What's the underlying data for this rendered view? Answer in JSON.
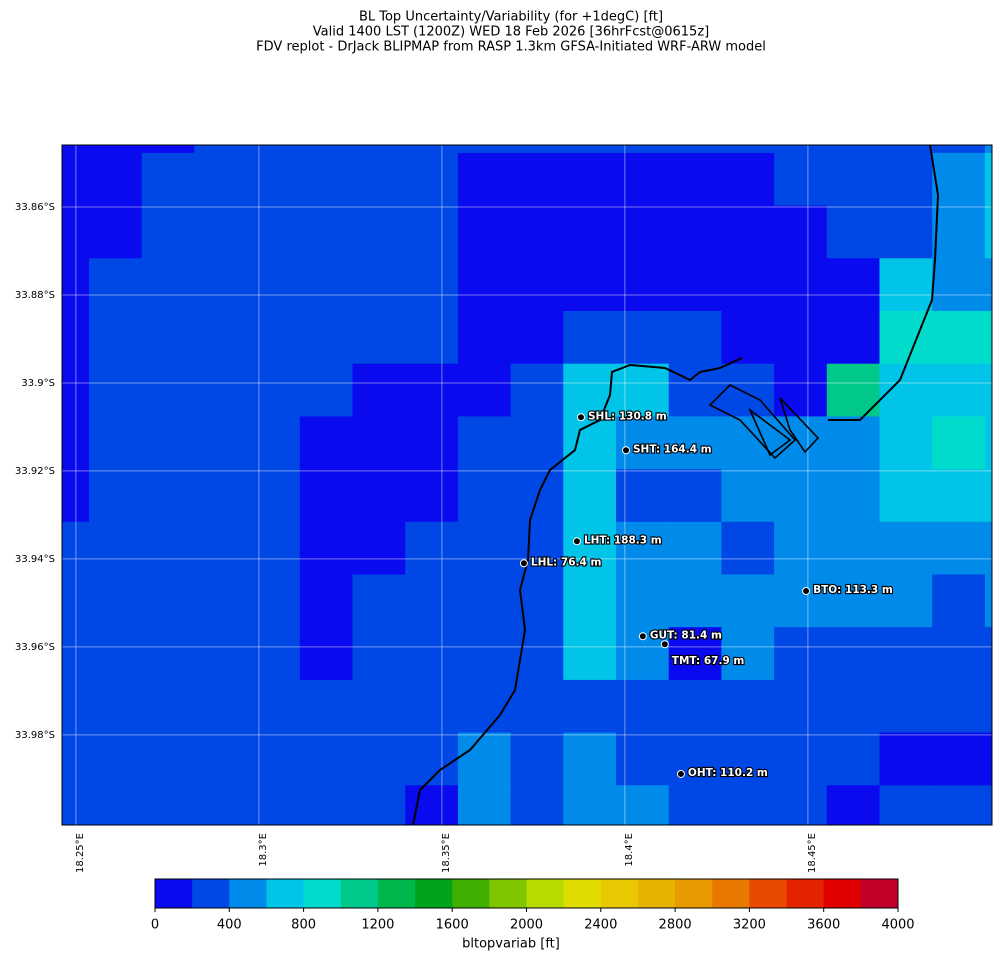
{
  "chart_data": {
    "type": "raster-map",
    "title": [
      "BL Top Uncertainty/Variability (for +1degC) [ft]",
      "Valid 1400 LST (1200Z) WED 18 Feb 2026 [36hrFcst@0615z]",
      "FDV replot - DrJack BLIPMAP from RASP 1.3km GFSA-Initiated WRF-ARW model"
    ],
    "xlim": [
      18.2462,
      18.5003
    ],
    "ylim": [
      -34.0005,
      -33.8459
    ],
    "xticks": [
      {
        "value": 18.25,
        "label": "18.25°E"
      },
      {
        "value": 18.3,
        "label": "18.3°E"
      },
      {
        "value": 18.35,
        "label": "18.35°E"
      },
      {
        "value": 18.4,
        "label": "18.4°E"
      },
      {
        "value": 18.45,
        "label": "18.45°E"
      }
    ],
    "yticks": [
      {
        "value": -33.86,
        "label": "33.86°S"
      },
      {
        "value": -33.88,
        "label": "33.88°S"
      },
      {
        "value": -33.9,
        "label": "33.9°S"
      },
      {
        "value": -33.92,
        "label": "33.92°S"
      },
      {
        "value": -33.94,
        "label": "33.94°S"
      },
      {
        "value": -33.96,
        "label": "33.96°S"
      },
      {
        "value": -33.98,
        "label": "33.98°S"
      }
    ],
    "grid": true,
    "raster": [
      [
        100,
        100,
        100,
        300,
        300,
        300,
        300,
        300,
        300,
        300,
        300,
        300,
        300,
        300,
        300,
        300,
        300,
        300,
        500
      ],
      [
        100,
        100,
        300,
        300,
        300,
        300,
        300,
        300,
        100,
        100,
        100,
        100,
        100,
        100,
        300,
        300,
        300,
        500,
        700
      ],
      [
        100,
        100,
        300,
        300,
        300,
        300,
        300,
        300,
        100,
        100,
        100,
        100,
        100,
        100,
        100,
        300,
        300,
        500,
        700
      ],
      [
        100,
        300,
        300,
        300,
        300,
        300,
        300,
        300,
        100,
        100,
        100,
        100,
        100,
        100,
        100,
        100,
        700,
        500,
        500
      ],
      [
        100,
        300,
        300,
        300,
        300,
        300,
        300,
        300,
        100,
        100,
        300,
        300,
        300,
        100,
        100,
        100,
        900,
        900,
        900
      ],
      [
        100,
        300,
        300,
        300,
        300,
        300,
        100,
        100,
        100,
        300,
        700,
        700,
        300,
        300,
        100,
        1100,
        700,
        700,
        700
      ],
      [
        100,
        300,
        300,
        300,
        300,
        100,
        100,
        100,
        300,
        300,
        700,
        500,
        500,
        500,
        500,
        500,
        700,
        900,
        700
      ],
      [
        100,
        300,
        300,
        300,
        300,
        100,
        100,
        100,
        300,
        300,
        700,
        300,
        300,
        500,
        500,
        500,
        700,
        700,
        700
      ],
      [
        300,
        300,
        300,
        300,
        300,
        100,
        100,
        300,
        300,
        300,
        700,
        500,
        500,
        300,
        500,
        500,
        500,
        500,
        500
      ],
      [
        300,
        300,
        300,
        300,
        300,
        100,
        300,
        300,
        300,
        300,
        700,
        500,
        500,
        500,
        500,
        500,
        500,
        300,
        500
      ],
      [
        300,
        300,
        300,
        300,
        300,
        100,
        300,
        300,
        300,
        300,
        700,
        500,
        100,
        500,
        300,
        300,
        300,
        300,
        300
      ],
      [
        300,
        300,
        300,
        300,
        300,
        300,
        300,
        300,
        300,
        300,
        300,
        300,
        300,
        300,
        300,
        300,
        300,
        300,
        300
      ],
      [
        300,
        300,
        300,
        300,
        300,
        300,
        300,
        300,
        500,
        300,
        500,
        300,
        300,
        300,
        300,
        300,
        100,
        100,
        100
      ],
      [
        300,
        300,
        300,
        300,
        300,
        300,
        300,
        100,
        500,
        300,
        500,
        500,
        300,
        300,
        300,
        100,
        300,
        300,
        300
      ]
    ],
    "stations": [
      {
        "label": "SHL: 130.8 m",
        "lon": 18.388,
        "lat": -33.9078
      },
      {
        "label": "SHT: 164.4 m",
        "lon": 18.4003,
        "lat": -33.9153
      },
      {
        "label": "LHT: 188.3 m",
        "lon": 18.3869,
        "lat": -33.936
      },
      {
        "label": "LHL: 76.4 m",
        "lon": 18.3724,
        "lat": -33.941
      },
      {
        "label": "BTO: 113.3 m",
        "lon": 18.4495,
        "lat": -33.9473
      },
      {
        "label": "GUT: 81.4 m",
        "lon": 18.4049,
        "lat": -33.9576
      },
      {
        "label": "TMT: 67.9 m",
        "lon": 18.4109,
        "lat": -33.9594
      },
      {
        "label": "OHT: 110.2 m",
        "lon": 18.4153,
        "lat": -33.9889
      }
    ],
    "colorbar": {
      "label": "bltopvariab [ft]",
      "clim": [
        0,
        4000
      ],
      "ticks": [
        0,
        400,
        800,
        1200,
        1600,
        2000,
        2400,
        2800,
        3200,
        3600,
        4000
      ],
      "colors": [
        "#0a0aee",
        "#0048e6",
        "#008aea",
        "#00c4e8",
        "#00dccc",
        "#00c88a",
        "#00b84c",
        "#00a41c",
        "#40b000",
        "#80c600",
        "#b8dc00",
        "#e0dc00",
        "#e8c800",
        "#e8b200",
        "#e89a00",
        "#e87800",
        "#e84a00",
        "#e42400",
        "#e00000",
        "#c00028"
      ]
    }
  }
}
